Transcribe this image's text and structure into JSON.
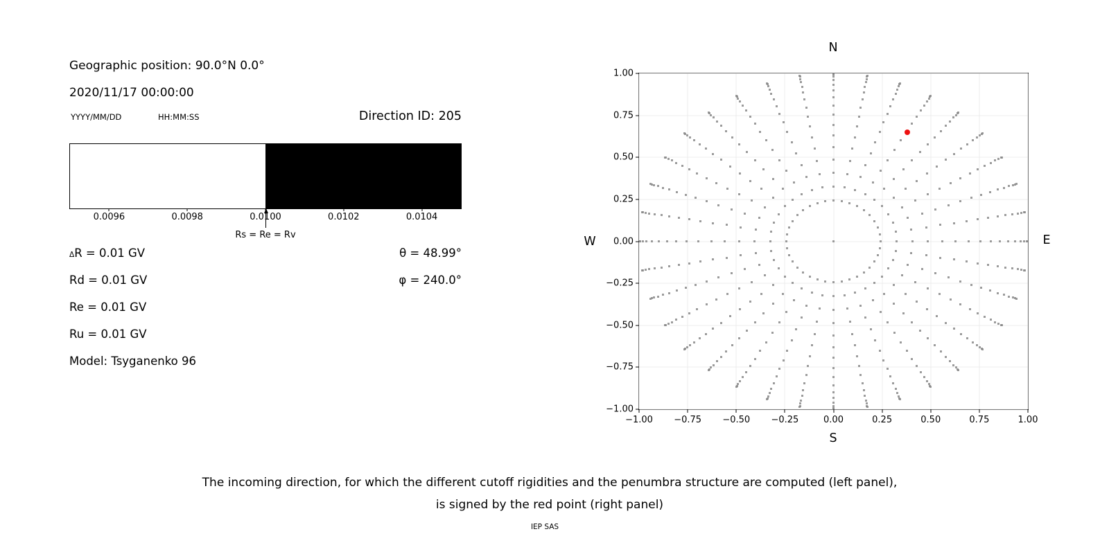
{
  "left_panel": {
    "geo_position": "Geographic position: 90.0°N 0.0°",
    "datetime": "2020/11/17 00:00:00",
    "date_format_label": "YYYY/MM/DD",
    "time_format_label": "HH:MM:SS",
    "direction_id_label": "Direction ID: 205",
    "rigidity_bar": {
      "xmin": 0.0095,
      "xmax": 0.0105,
      "boundary_value": 0.01,
      "tick_values": [
        0.0096,
        0.0098,
        0.01,
        0.0102,
        0.0104
      ],
      "tick_labels": [
        "0.0096",
        "0.0098",
        "0.0100",
        "0.0102",
        "0.0104"
      ],
      "allowed_color": "#ffffff",
      "forbidden_color": "#000000",
      "arrow_label": "Rs = Re = Rv"
    },
    "parameters": {
      "delta_r_symbol": "Δ",
      "delta_r_text": "R = 0.01 GV",
      "rd": "Rd = 0.01 GV",
      "re": "Re = 0.01 GV",
      "ru": "Ru = 0.01 GV",
      "theta": "θ = 48.99°",
      "phi": "φ = 240.0°",
      "model": "Model: Tsyganenko 96"
    }
  },
  "chart_data": {
    "type": "scatter",
    "compass": {
      "top": "N",
      "bottom": "S",
      "left": "W",
      "right": "E"
    },
    "axes": {
      "xlim": [
        -1,
        1
      ],
      "ylim": [
        -1,
        1
      ],
      "xtick_values": [
        -1,
        -0.75,
        -0.5,
        -0.25,
        0,
        0.25,
        0.5,
        0.75,
        1
      ],
      "xtick_labels": [
        "−1.00",
        "−0.75",
        "−0.50",
        "−0.25",
        "0.00",
        "0.25",
        "0.50",
        "0.75",
        "1.00"
      ],
      "ytick_values": [
        -1,
        -0.75,
        -0.5,
        -0.25,
        0,
        0.25,
        0.5,
        0.75,
        1
      ],
      "ytick_labels": [
        "−1.00",
        "−0.75",
        "−0.50",
        "−0.25",
        "0.00",
        "0.25",
        "0.50",
        "0.75",
        "1.00"
      ],
      "grid": true,
      "grid_color": "#ececec"
    },
    "direction_grid": {
      "radius_mapping": "r = sin(zenith)",
      "azimuth_start_deg": 0,
      "azimuth_step_deg": 10,
      "azimuth_count": 36,
      "zenith_start_deg": 13.99,
      "zenith_step_deg": 5,
      "zenith_count": 16,
      "includes_center_point": true,
      "dot_color": "#8a8a8a"
    },
    "selected_direction": {
      "x": 0.378,
      "y": 0.651,
      "zenith_deg": 48.99,
      "azimuth_plot_deg": 60,
      "color": "#ee1111"
    }
  },
  "caption": {
    "line1": "The incoming direction, for which the different cutoff rigidities and the penumbra structure are computed (left panel),",
    "line2": "is signed by the red point (right panel)",
    "credit": "IEP SAS"
  }
}
